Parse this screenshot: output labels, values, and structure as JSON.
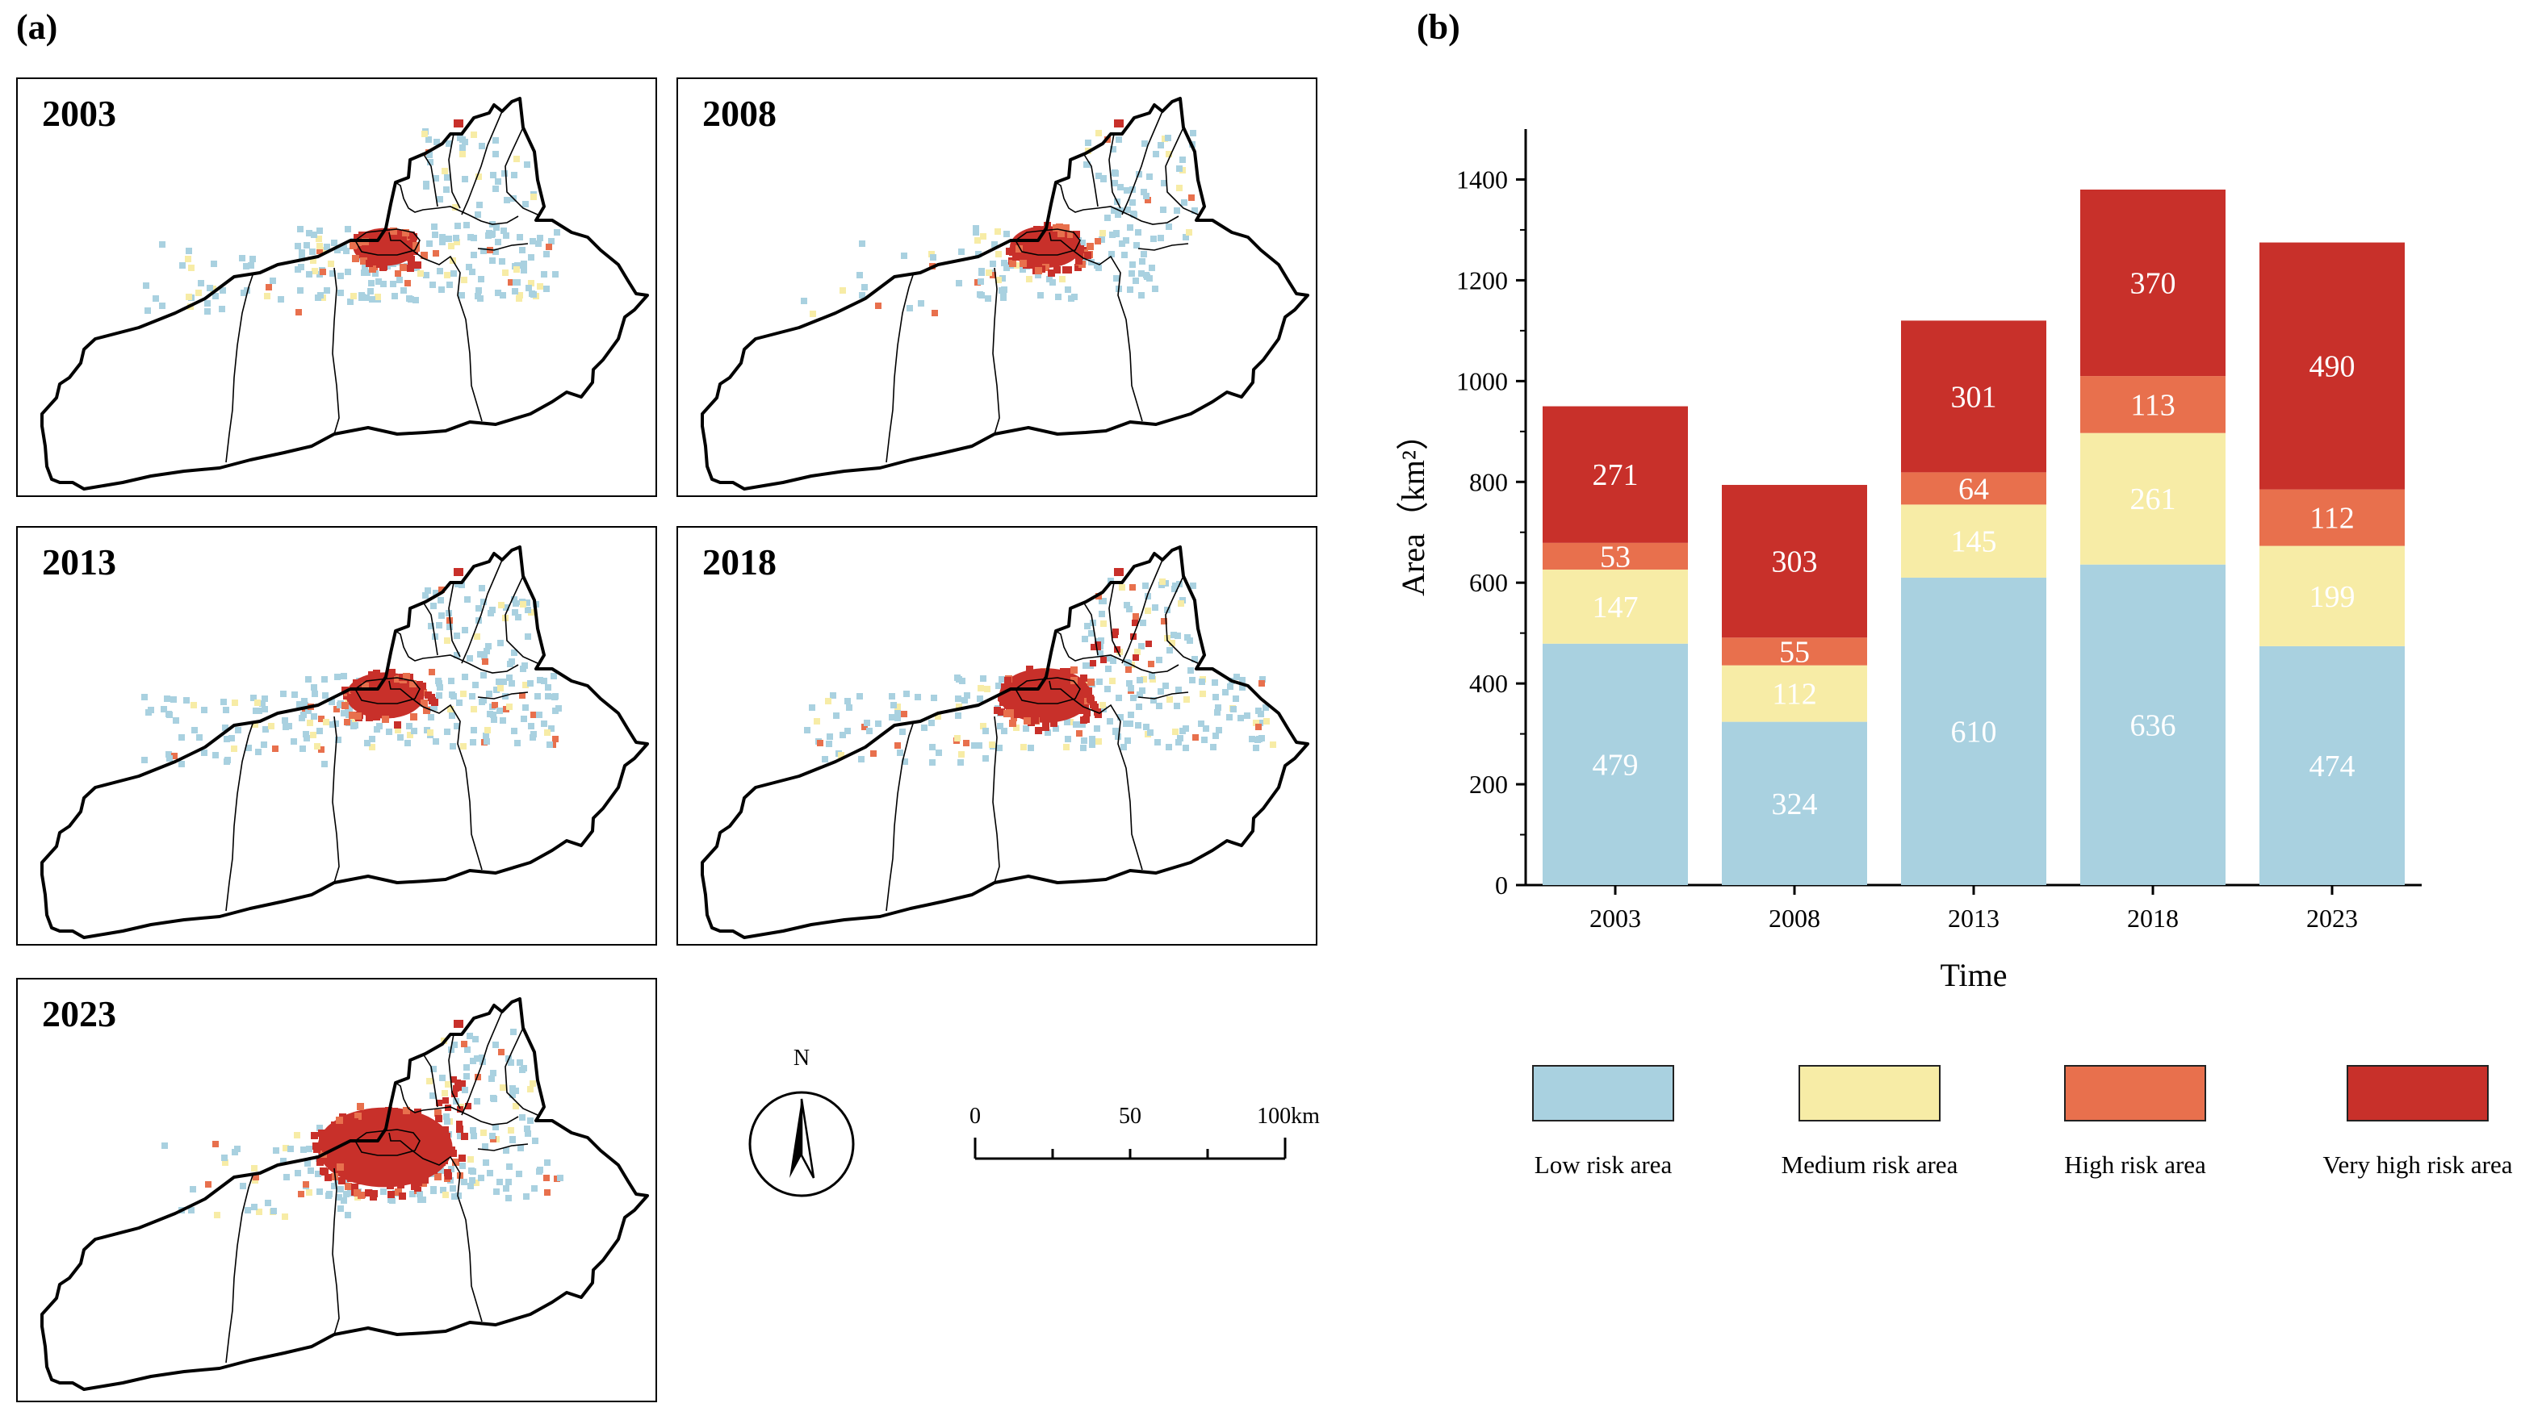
{
  "panel_a_label": "(a)",
  "panel_b_label": "(b)",
  "maps": [
    {
      "year": "2003"
    },
    {
      "year": "2008"
    },
    {
      "year": "2013"
    },
    {
      "year": "2018"
    },
    {
      "year": "2023"
    }
  ],
  "compass": {
    "north_label": "N"
  },
  "scale_bar": {
    "labels": [
      "0",
      "50",
      "100km"
    ]
  },
  "colors": {
    "low": "#a9d1e0",
    "medium": "#f7eca6",
    "high": "#e8704d",
    "very_high": "#c8302a"
  },
  "chart_data": {
    "type": "bar",
    "stacked": true,
    "title": "",
    "xlabel": "Time",
    "ylabel": "Area（km²）",
    "ylim": [
      0,
      1500
    ],
    "yticks": [
      0,
      200,
      400,
      600,
      800,
      1000,
      1200,
      1400
    ],
    "categories": [
      "2003",
      "2008",
      "2013",
      "2018",
      "2023"
    ],
    "series": [
      {
        "name": "Low risk area",
        "color": "#a9d1e0",
        "label_color": "#ffffff",
        "values": [
          479,
          324,
          610,
          636,
          474
        ]
      },
      {
        "name": "Medium risk area",
        "color": "#f7eca6",
        "label_color": "#ffffff",
        "values": [
          147,
          112,
          145,
          261,
          199
        ]
      },
      {
        "name": "High risk area",
        "color": "#e8704d",
        "label_color": "#ffffff",
        "values": [
          53,
          55,
          64,
          113,
          112
        ]
      },
      {
        "name": "Very high risk area",
        "color": "#c8302a",
        "label_color": "#ffffff",
        "values": [
          271,
          303,
          301,
          370,
          490
        ]
      }
    ],
    "legend_position": "bottom"
  }
}
